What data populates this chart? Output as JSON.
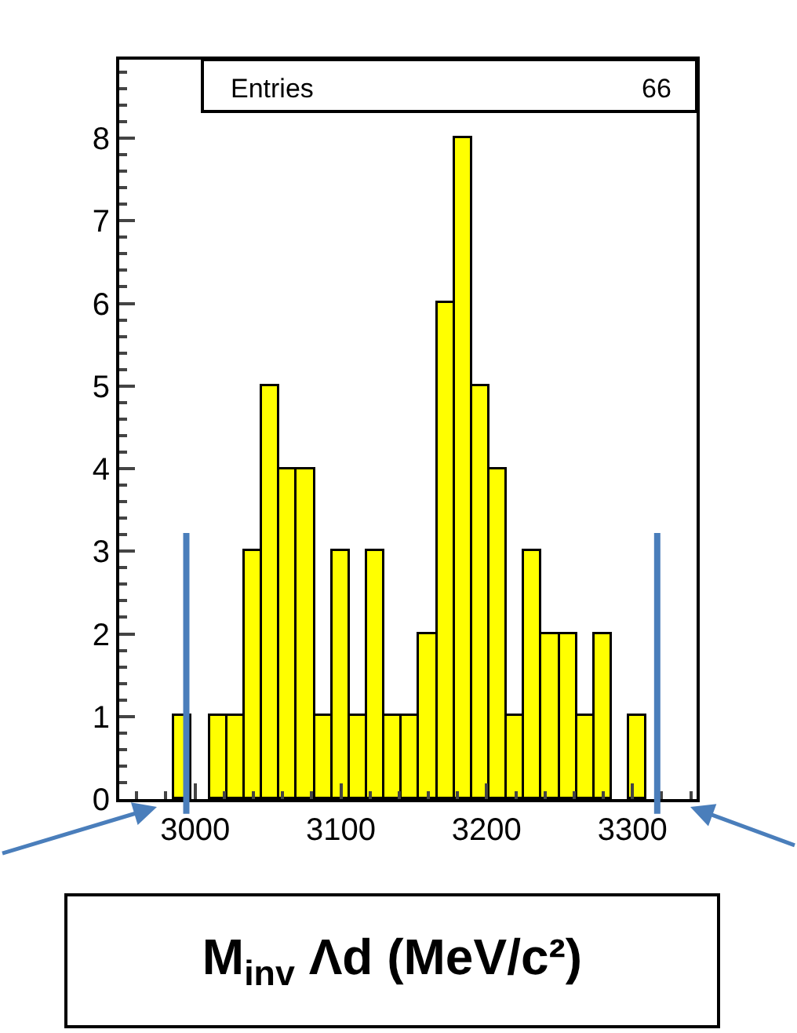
{
  "chart_data": {
    "type": "histogram",
    "xlabel": "M$_{inv}$ Λd (MeV/c²)",
    "bins": [
      2986,
      2998,
      3010,
      3022,
      3034,
      3046,
      3058,
      3070,
      3082,
      3094,
      3106,
      3118,
      3130,
      3142,
      3154,
      3166,
      3178,
      3190,
      3202,
      3214,
      3226,
      3238,
      3250,
      3262,
      3274,
      3286,
      3298,
      3310
    ],
    "values": [
      1,
      0,
      1,
      1,
      3,
      5,
      4,
      4,
      1,
      3,
      1,
      3,
      1,
      1,
      2,
      6,
      8,
      5,
      4,
      1,
      3,
      2,
      2,
      1,
      2,
      0,
      1
    ],
    "color": "#ffff00",
    "xlim": [
      2948,
      3344
    ],
    "xticks": [
      3000,
      3100,
      3200,
      3300
    ],
    "ylim": [
      0,
      8.95
    ],
    "yticks": [
      0,
      1,
      2,
      3,
      4,
      5,
      6,
      7,
      8
    ],
    "annotations": [
      "Entries",
      "66"
    ],
    "ref_lines": [
      {
        "axis": "x",
        "value": 2994,
        "label": null,
        "color": "#4a7ebb"
      },
      {
        "axis": "x",
        "value": 3317,
        "label": null,
        "color": "#4a7ebb"
      }
    ]
  }
}
